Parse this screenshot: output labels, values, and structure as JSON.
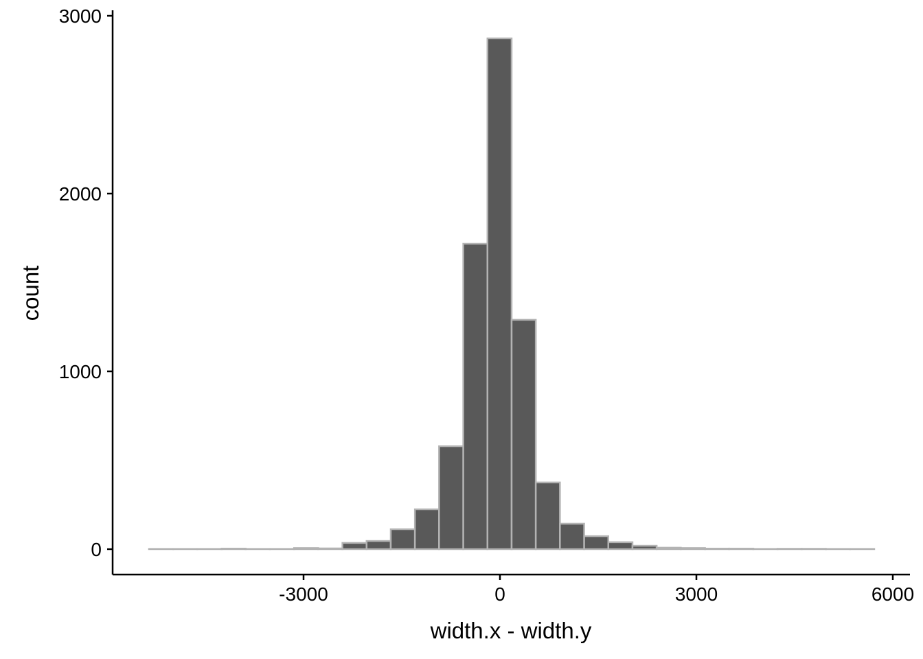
{
  "chart_data": {
    "type": "histogram",
    "x_label": "width.x - width.y",
    "y_label": "count",
    "bins": [
      -5360,
      -4991,
      -4622,
      -4252,
      -3883,
      -3514,
      -3145,
      -2776,
      -2406,
      -2037,
      -1668,
      -1299,
      -930,
      -560,
      -191,
      178,
      547,
      916,
      1286,
      1655,
      2024,
      2393,
      2762,
      3132,
      3501,
      3870,
      4239,
      4608,
      4978,
      5347,
      5716
    ],
    "counts": [
      1,
      1,
      1,
      3,
      1,
      1,
      6,
      4,
      35,
      46,
      112,
      224,
      579,
      1718,
      2873,
      1290,
      375,
      143,
      73,
      39,
      19,
      8,
      6,
      3,
      3,
      1,
      2,
      2,
      1,
      1
    ],
    "color": "#595959",
    "edge_color": "#b3b3b3",
    "xlim": [
      -5916,
      6262
    ],
    "ylim": [
      -143,
      3031
    ],
    "xticks": [
      -3000,
      0,
      3000,
      6000
    ],
    "yticks": [
      0,
      1000,
      2000,
      3000
    ],
    "grid": false
  }
}
